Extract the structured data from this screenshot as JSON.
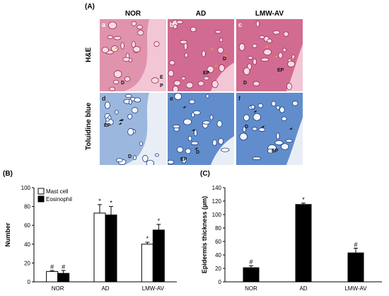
{
  "panel_a": {
    "label": "(A)",
    "columns": [
      "NOR",
      "AD",
      "LMW-AV"
    ],
    "rows": [
      "H&E",
      "Toluidine blue"
    ],
    "images": [
      {
        "letter": "a",
        "tissue": [
          "D",
          "E",
          "P"
        ]
      },
      {
        "letter": "b",
        "tissue": [
          "EP",
          "D"
        ]
      },
      {
        "letter": "c",
        "tissue": [
          "EP",
          "D"
        ]
      },
      {
        "letter": "d",
        "tissue": [
          "EP",
          "D"
        ]
      },
      {
        "letter": "e",
        "tissue": [
          "EP",
          "D"
        ]
      },
      {
        "letter": "f",
        "tissue": [
          "D",
          "EP"
        ]
      }
    ]
  },
  "colors": {
    "he_bg": "#f2c6d4",
    "he_tissue": "#c8547f",
    "he_dark": "#9c2d5a",
    "tol_bg": "#e9eef6",
    "tol_tissue": "#3f74c2",
    "tol_dark": "#1d3f86",
    "arrow_orange": "#f0a020",
    "arrow_red": "#e03030"
  },
  "chart_data": [
    {
      "label": "(B)",
      "type": "bar",
      "categories": [
        "NOR",
        "AD",
        "LMW-AV"
      ],
      "series": [
        {
          "name": "Mast cell",
          "values": [
            11,
            73,
            40
          ],
          "errors": [
            1,
            9,
            2
          ],
          "marks": [
            "#",
            "*",
            "*"
          ],
          "color": "#ffffff"
        },
        {
          "name": "Eosinophil",
          "values": [
            9,
            71,
            55
          ],
          "errors": [
            3,
            9,
            6
          ],
          "marks": [
            "#",
            "*",
            "*"
          ],
          "color": "#000000"
        }
      ],
      "ylabel": "Number",
      "ylim": [
        0,
        100
      ],
      "yticks": [
        0,
        20,
        40,
        60,
        80,
        100
      ],
      "legend": "top-left"
    },
    {
      "label": "(C)",
      "type": "bar",
      "categories": [
        "NOR",
        "AD",
        "LMW-AV"
      ],
      "series": [
        {
          "values": [
            21,
            115,
            43
          ],
          "errors": [
            3,
            2,
            7
          ],
          "marks": [
            "#",
            "*",
            "#"
          ],
          "color": "#000000"
        }
      ],
      "ylabel": "Epidermis thickness (µm)",
      "ylim": [
        0,
        140
      ],
      "yticks": [
        0,
        20,
        40,
        60,
        80,
        100,
        120,
        140
      ]
    }
  ]
}
